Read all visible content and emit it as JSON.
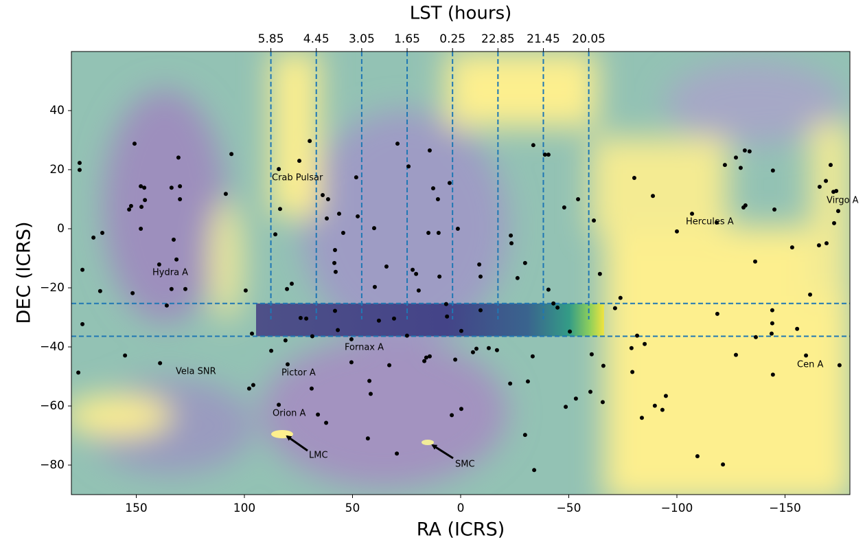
{
  "chart_data": {
    "type": "scatter",
    "xlabel": "RA (ICRS)",
    "ylabel": "DEC (ICRS)",
    "x2label": "LST (hours)",
    "xlim": [
      180,
      -180
    ],
    "ylim": [
      -90,
      60
    ],
    "x2lim": [
      12,
      -12
    ],
    "xticks": [
      150,
      100,
      50,
      0,
      {
        "value": -50,
        "label": "−50"
      },
      {
        "value": -100,
        "label": "−100"
      },
      {
        "value": -150,
        "label": "−150"
      }
    ],
    "yticks": [
      40,
      20,
      0,
      {
        "value": -20,
        "label": "−20"
      },
      {
        "value": -40,
        "label": "−40"
      },
      {
        "value": -60,
        "label": "−60"
      },
      {
        "value": -80,
        "label": "−80"
      }
    ],
    "x2ticks": [
      5.85,
      4.45,
      3.05,
      1.65,
      0.25,
      {
        "value": -1.15,
        "label": "22.85"
      },
      {
        "value": -2.55,
        "label": "21.45"
      },
      {
        "value": -3.95,
        "label": "20.05"
      }
    ],
    "vline_ymin": -30.7,
    "hlines": [
      -25.3,
      -36.4
    ],
    "line_color": "#1f77b4",
    "shaded_region": {
      "x": [
        94.6,
        -66.3
      ],
      "y": [
        -25.3,
        -36.4
      ]
    },
    "color": "#000000",
    "x": [
      176.2,
      176.2,
      174.9,
      174.9,
      176.8,
      169.8,
      165.7,
      166.7,
      155.2,
      153.3,
      152.4,
      150.8,
      147.9,
      147.6,
      147.9,
      146.3,
      146.0,
      151.7,
      139.4,
      133.7,
      139.0,
      135.9,
      133.7,
      132.7,
      131.4,
      130.5,
      129.8,
      129.8,
      127.3,
      108.6,
      106.0,
      99.4,
      96.5,
      97.8,
      95.9,
      84.1,
      83.5,
      85.7,
      87.6,
      84.1,
      81.0,
      80.3,
      80.0,
      78.1,
      74.0,
      74.6,
      69.8,
      71.4,
      68.9,
      68.6,
      66.0,
      62.2,
      63.8,
      61.9,
      61.3,
      58.1,
      58.4,
      57.8,
      58.1,
      56.8,
      56.2,
      54.3,
      50.5,
      50.5,
      48.3,
      47.6,
      42.2,
      41.6,
      42.9,
      40.0,
      39.7,
      37.8,
      34.3,
      33.0,
      29.2,
      30.8,
      29.5,
      24.1,
      24.8,
      22.2,
      20.6,
      19.4,
      16.8,
      15.9,
      14.9,
      14.3,
      12.7,
      14.3,
      10.5,
      10.2,
      9.8,
      6.7,
      6.3,
      5.1,
      4.1,
      2.5,
      1.3,
      -0.3,
      -0.3,
      -5.7,
      -7.3,
      -8.6,
      -9.2,
      -9.2,
      -13.0,
      -16.8,
      -23.2,
      -23.5,
      -22.9,
      -26.3,
      -29.8,
      -29.8,
      -31.1,
      -33.6,
      -33.3,
      -34.0,
      -39.0,
      -40.6,
      -40.6,
      -42.9,
      -44.8,
      -47.9,
      -48.6,
      -50.5,
      -53.3,
      -54.3,
      -60.0,
      -61.6,
      -60.6,
      -64.4,
      -65.7,
      -66.0,
      -71.4,
      -73.9,
      -79.0,
      -79.4,
      -80.3,
      -81.6,
      -85.1,
      -83.8,
      -88.9,
      -89.8,
      -93.3,
      -94.9,
      -100.0,
      -107.0,
      -109.5,
      -118.7,
      -118.4,
      -121.3,
      -122.2,
      -127.3,
      -127.3,
      -129.5,
      -130.8,
      -131.4,
      -131.7,
      -133.6,
      -136.2,
      -136.5,
      -143.8,
      -144.4,
      -144.1,
      -144.1,
      -144.4,
      -145.1,
      -153.3,
      -155.6,
      -159.7,
      -161.6,
      -165.7,
      -166.0,
      -168.9,
      -169.2,
      -171.1,
      -172.4,
      -172.7,
      -173.7,
      -174.6,
      -175.2
    ],
    "values": [
      22.3,
      19.9,
      -13.9,
      -32.3,
      -48.7,
      -3.0,
      -1.4,
      -21.1,
      -42.9,
      6.5,
      7.7,
      28.8,
      14.4,
      7.4,
      0,
      13.9,
      9.7,
      -21.8,
      -12.1,
      13.9,
      -45.5,
      -26.0,
      -20.4,
      -3.7,
      -10.4,
      24.1,
      14.4,
      10.0,
      -20.4,
      11.8,
      25.3,
      -20.9,
      -35.5,
      -54.1,
      -52.9,
      20.2,
      6.7,
      -1.9,
      -41.3,
      -59.6,
      -37.8,
      -20.4,
      -45.9,
      -18.6,
      -30.2,
      23.0,
      29.7,
      -30.4,
      -54.1,
      -36.4,
      -62.9,
      -65.7,
      11.4,
      3.5,
      10.0,
      -7.2,
      -11.6,
      -14.6,
      -27.8,
      -34.3,
      5.1,
      -1.4,
      -37.4,
      -45.2,
      17.4,
      4.2,
      -51.5,
      -55.9,
      -71.0,
      0.2,
      -19.7,
      -31.1,
      -12.8,
      -46.2,
      28.8,
      -30.4,
      -76.1,
      21.1,
      -36.2,
      -13.9,
      -15.3,
      -20.9,
      -44.8,
      -43.6,
      -1.4,
      26.5,
      13.7,
      -43.2,
      10.0,
      -1.4,
      -16.2,
      -25.5,
      -29.7,
      15.5,
      -63.1,
      -44.3,
      0.0,
      -34.6,
      -61.0,
      -41.8,
      -40.6,
      -12.1,
      -16.2,
      -27.6,
      -40.4,
      -41.1,
      -2.3,
      -4.9,
      -52.4,
      -16.7,
      -11.6,
      -69.8,
      -51.7,
      28.3,
      -43.2,
      -81.7,
      25.1,
      25.1,
      -20.6,
      -25.3,
      -26.7,
      7.2,
      -60.3,
      -34.8,
      -57.5,
      10.0,
      -55.2,
      2.8,
      -42.5,
      -15.3,
      -58.7,
      -46.4,
      -26.9,
      -23.4,
      -40.4,
      -48.5,
      17.2,
      -36.2,
      -39.0,
      -64.0,
      11.1,
      -59.9,
      -61.3,
      -56.6,
      -0.9,
      5.1,
      -77.0,
      -28.8,
      2.1,
      -79.8,
      21.6,
      -42.7,
      24.1,
      20.6,
      7.2,
      26.5,
      7.9,
      26.2,
      -11.1,
      -36.7,
      -35.5,
      19.7,
      -27.6,
      -32.0,
      -49.4,
      6.5,
      -6.3,
      -33.9,
      -42.9,
      -22.3,
      -5.6,
      14.2,
      16.2,
      -4.9,
      21.6,
      12.5,
      1.9,
      12.8,
      6.0,
      -46.2
    ],
    "annotations": [
      "Crab Pulsar",
      "Hydra A",
      "Vela SNR",
      "Pictor A",
      "Orion A",
      "LMC",
      "SMC",
      "Fornax A",
      "Hercules A",
      "Virgo A",
      "Cen A"
    ]
  }
}
